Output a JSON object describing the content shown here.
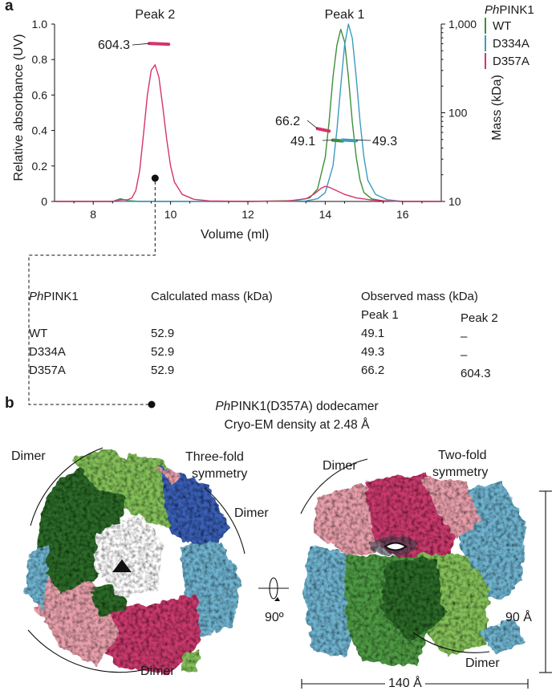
{
  "panel_a": {
    "label": "a",
    "chart_data": {
      "type": "line",
      "title": "",
      "xlabel": "Volume (ml)",
      "ylabel": "Relative absorbance (UV)",
      "y2label": "Mass (kDa)",
      "xlim": [
        7,
        17
      ],
      "ylim": [
        0,
        1.0
      ],
      "y2_scale": "log",
      "y2lim": [
        10,
        1000
      ],
      "x_ticks": [
        "8",
        "10",
        "12",
        "14",
        "16"
      ],
      "y_ticks": [
        "0",
        "0.2",
        "0.4",
        "0.6",
        "0.8",
        "1.0"
      ],
      "y2_ticks": [
        "10",
        "100",
        "1,000"
      ],
      "legend": {
        "title_italic": "Ph",
        "title": "PINK1",
        "placement": "top-right outside"
      },
      "series": [
        {
          "name": "WT",
          "color": "#3d8f3a",
          "x": [
            7,
            8.5,
            8.7,
            8.9,
            9.2,
            10,
            12,
            13.2,
            13.6,
            13.8,
            14.0,
            14.1,
            14.2,
            14.3,
            14.4,
            14.5,
            14.6,
            14.7,
            14.8,
            14.9,
            15.0,
            15.2,
            15.5,
            16,
            17
          ],
          "y": [
            0,
            0,
            0.015,
            0.005,
            0,
            0,
            0,
            0.005,
            0.02,
            0.07,
            0.25,
            0.45,
            0.7,
            0.88,
            0.97,
            0.9,
            0.7,
            0.45,
            0.25,
            0.12,
            0.05,
            0.015,
            0.003,
            0,
            0
          ]
        },
        {
          "name": "D334A",
          "color": "#3a9cbf",
          "x": [
            7,
            9.5,
            9.6,
            10,
            12,
            13.5,
            13.8,
            14.0,
            14.2,
            14.3,
            14.4,
            14.5,
            14.6,
            14.7,
            14.8,
            14.9,
            15.0,
            15.1,
            15.3,
            15.6,
            16,
            17
          ],
          "y": [
            0,
            0,
            0,
            0,
            0,
            0.003,
            0.015,
            0.05,
            0.2,
            0.4,
            0.65,
            0.88,
            1.0,
            0.92,
            0.7,
            0.45,
            0.25,
            0.12,
            0.04,
            0.01,
            0,
            0
          ]
        },
        {
          "name": "D357A",
          "color": "#d6336b",
          "x": [
            7,
            8.5,
            8.7,
            8.9,
            9.0,
            9.1,
            9.2,
            9.3,
            9.4,
            9.5,
            9.6,
            9.7,
            9.8,
            9.9,
            10.0,
            10.1,
            10.3,
            10.6,
            11,
            12,
            13,
            13.5,
            13.7,
            13.9,
            14.0,
            14.1,
            14.3,
            14.5,
            14.8,
            15.2,
            15.6,
            16,
            17
          ],
          "y": [
            0,
            0,
            0.008,
            0.01,
            0.02,
            0.06,
            0.17,
            0.38,
            0.6,
            0.74,
            0.77,
            0.7,
            0.53,
            0.35,
            0.2,
            0.11,
            0.04,
            0.012,
            0.003,
            0,
            0.002,
            0.015,
            0.04,
            0.075,
            0.085,
            0.08,
            0.06,
            0.04,
            0.02,
            0.008,
            0.003,
            0,
            0
          ]
        }
      ],
      "mass_markers": [
        {
          "series": "D357A",
          "label": "604.3",
          "x_range": [
            9.45,
            9.95
          ],
          "mass": 604.3
        },
        {
          "series": "D357A",
          "label": "66.2",
          "x_range": [
            13.8,
            14.1
          ],
          "mass": 66.2
        },
        {
          "series": "WT",
          "label": "49.1",
          "x_range": [
            14.2,
            14.45
          ],
          "mass": 49.1
        },
        {
          "series": "D334A",
          "label": "49.3",
          "x_range": [
            14.45,
            14.8
          ],
          "mass": 49.3
        }
      ],
      "peak_labels": [
        {
          "label": "Peak 2",
          "x": 9.6
        },
        {
          "label": "Peak 1",
          "x": 14.5
        }
      ]
    },
    "table": {
      "title_italic": "Ph",
      "title_rest": "PINK1",
      "calc_header": "Calculated mass (kDa)",
      "obs_header": "Observed mass (kDa)",
      "sub_peak1": "Peak 1",
      "sub_peak2": "Peak 2",
      "rows": [
        {
          "name": "WT",
          "calc": "52.9",
          "p1": "49.1",
          "p2": "–"
        },
        {
          "name": "D334A",
          "calc": "52.9",
          "p1": "49.3",
          "p2": "–"
        },
        {
          "name": "D357A",
          "calc": "52.9",
          "p1": "66.2",
          "p2": "604.3"
        }
      ]
    }
  },
  "panel_b": {
    "label": "b",
    "caption_italic": "Ph",
    "caption_line1_rest": "PINK1(D357A) dodecamer",
    "caption_line2": "Cryo-EM density at 2.48 Å",
    "left_view": {
      "dimer_top_left": "Dimer",
      "three_fold_line1": "Three-fold",
      "three_fold_line2": "symmetry",
      "dimer_right": "Dimer",
      "dimer_bottom": "Dimer"
    },
    "rotation_label": "90º",
    "right_view": {
      "dimer_top_left": "Dimer",
      "two_fold_line1": "Two-fold",
      "two_fold_line2": "symmetry",
      "dimer_bottom": "Dimer",
      "height_label": "90 Å",
      "width_label": "140 Å"
    },
    "colors": {
      "dark_green": "#2f6b2c",
      "light_green": "#84c05a",
      "blue": "#3b5fb4",
      "light_blue": "#6fb3cf",
      "pink": "#e8a0ac",
      "magenta": "#c93a6d",
      "mid_green": "#4f9a45"
    }
  }
}
